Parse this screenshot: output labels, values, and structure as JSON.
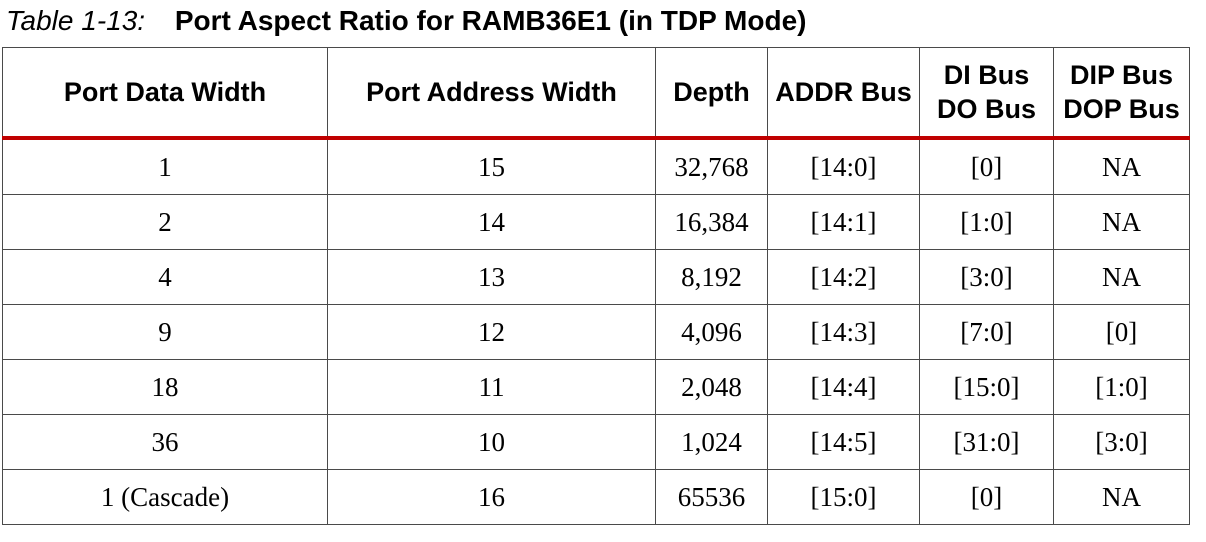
{
  "caption": {
    "number": "Table 1-13:",
    "title": "Port Aspect Ratio for RAMB36E1 (in TDP Mode)"
  },
  "table": {
    "headers": [
      {
        "line1": "Port Data Width",
        "line2": ""
      },
      {
        "line1": "Port Address Width",
        "line2": ""
      },
      {
        "line1": "Depth",
        "line2": ""
      },
      {
        "line1": "ADDR Bus",
        "line2": ""
      },
      {
        "line1": "DI Bus",
        "line2": "DO Bus"
      },
      {
        "line1": "DIP Bus",
        "line2": "DOP Bus"
      }
    ],
    "rows": [
      [
        "1",
        "15",
        "32,768",
        "[14:0]",
        "[0]",
        "NA"
      ],
      [
        "2",
        "14",
        "16,384",
        "[14:1]",
        "[1:0]",
        "NA"
      ],
      [
        "4",
        "13",
        "8,192",
        "[14:2]",
        "[3:0]",
        "NA"
      ],
      [
        "9",
        "12",
        "4,096",
        "[14:3]",
        "[7:0]",
        "[0]"
      ],
      [
        "18",
        "11",
        "2,048",
        "[14:4]",
        "[15:0]",
        "[1:0]"
      ],
      [
        "36",
        "10",
        "1,024",
        "[14:5]",
        "[31:0]",
        "[3:0]"
      ],
      [
        "1 (Cascade)",
        "16",
        "65536",
        "[15:0]",
        "[0]",
        "NA"
      ]
    ]
  },
  "colors": {
    "header_rule": "#c00000",
    "grid": "#4a4a4a"
  }
}
